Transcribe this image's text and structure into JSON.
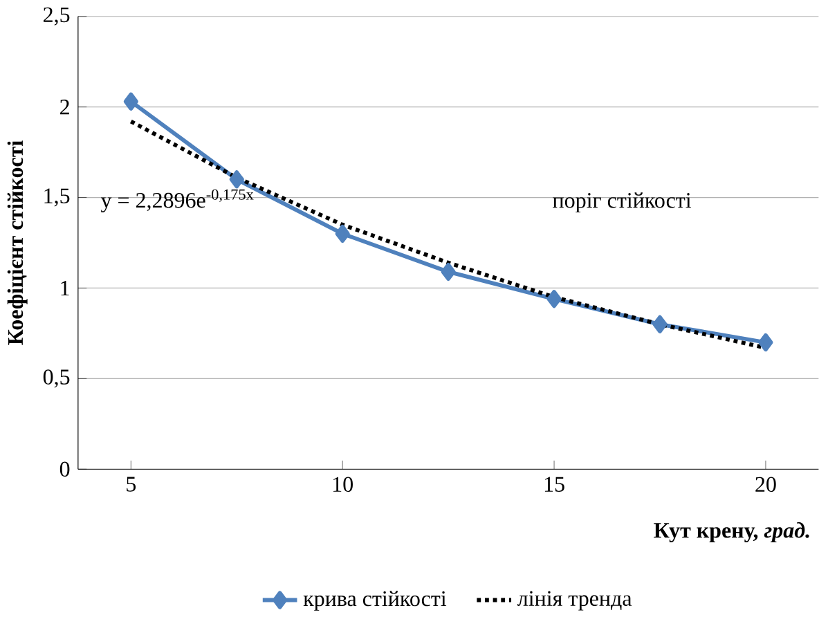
{
  "chart_data": {
    "type": "line",
    "xlabel": "Кут крену, *град.*",
    "ylabel": "Коефіцієнт стійкості",
    "xlim": [
      3.75,
      21.25
    ],
    "xticks": [
      5,
      10,
      15,
      20
    ],
    "ylim": [
      0,
      2.5
    ],
    "yticks": [
      0,
      {
        "value": 0.5,
        "label": "0,5"
      },
      1,
      {
        "value": 1.5,
        "label": "1,5"
      },
      2,
      {
        "value": 2.5,
        "label": "2,5"
      }
    ],
    "grid": "y",
    "legend": "bottom",
    "series": [
      {
        "name": "крива стійкості",
        "color": "#4f81bd",
        "marker": "diamond",
        "line_style": "solid",
        "x": [
          5,
          7.5,
          10,
          12.5,
          15,
          17.5,
          20
        ],
        "values": [
          2.03,
          1.6,
          1.3,
          1.09,
          0.94,
          0.8,
          0.7
        ]
      },
      {
        "name": "лінія тренда",
        "color": "#000000",
        "marker": "none",
        "line_style": "dotted",
        "x": [
          5,
          7.5,
          10,
          12.5,
          15,
          17.5,
          20
        ],
        "values": [
          1.92,
          1.61,
          1.35,
          1.14,
          0.95,
          0.8,
          0.67
        ]
      }
    ],
    "annotations": [
      "y = 2,2896e$^{-0,175x}$",
      "поріг стійкості"
    ]
  }
}
